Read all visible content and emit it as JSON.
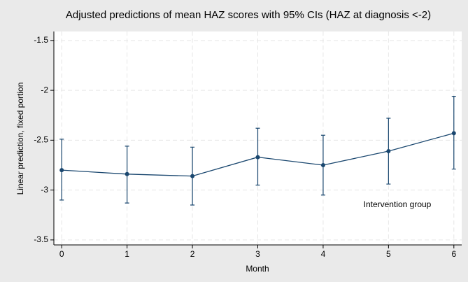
{
  "chart_data": {
    "type": "line",
    "title": "Adjusted predictions of mean HAZ scores with 95% CIs (HAZ at diagnosis <-2)",
    "x_label": "Month",
    "y_label": "Linear prediction, fixed portion",
    "annotation": "Intervention group",
    "x": [
      0,
      1,
      2,
      3,
      4,
      5,
      6
    ],
    "series": [
      {
        "name": "Intervention group",
        "color": "#1a476f",
        "values": [
          -2.8,
          -2.84,
          -2.86,
          -2.67,
          -2.75,
          -2.61,
          -2.43
        ],
        "ci_lower": [
          -3.1,
          -3.13,
          -3.15,
          -2.95,
          -3.05,
          -2.94,
          -2.79
        ],
        "ci_upper": [
          -2.49,
          -2.56,
          -2.57,
          -2.38,
          -2.45,
          -2.28,
          -2.06
        ]
      }
    ],
    "xlim": [
      -0.12,
      6.12
    ],
    "xticks": [
      0,
      1,
      2,
      3,
      4,
      5,
      6
    ],
    "ylim": [
      -3.55,
      -1.41
    ],
    "yticks": [
      -3.5,
      -3,
      -2.5,
      -2,
      -1.5
    ],
    "grid": true
  }
}
